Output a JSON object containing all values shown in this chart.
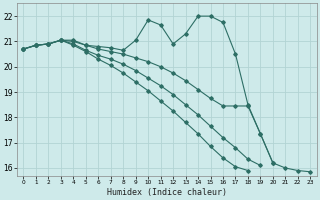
{
  "xlabel": "Humidex (Indice chaleur)",
  "bg_color": "#ceeaea",
  "grid_color": "#b2d4d4",
  "line_color": "#2d6e65",
  "xlim": [
    -0.5,
    23.5
  ],
  "ylim": [
    15.7,
    22.5
  ],
  "yticks": [
    16,
    17,
    18,
    19,
    20,
    21,
    22
  ],
  "xticks": [
    0,
    1,
    2,
    3,
    4,
    5,
    6,
    7,
    8,
    9,
    10,
    11,
    12,
    13,
    14,
    15,
    16,
    17,
    18,
    19,
    20,
    21,
    22,
    23
  ],
  "line1_x": [
    0,
    1,
    2,
    3,
    4,
    5,
    6,
    7,
    8,
    9,
    10,
    11,
    12,
    13,
    14,
    15,
    16,
    17,
    18,
    19,
    20,
    21,
    22,
    23
  ],
  "line1_y": [
    20.7,
    20.85,
    20.9,
    21.05,
    21.05,
    20.85,
    20.8,
    20.75,
    20.65,
    21.05,
    21.85,
    21.65,
    20.9,
    21.3,
    22.0,
    22.0,
    21.75,
    20.5,
    18.5,
    17.35,
    16.2,
    16.0,
    15.9,
    15.85
  ],
  "line2_x": [
    0,
    1,
    2,
    3,
    4,
    5,
    6,
    7,
    8,
    9,
    10,
    11,
    12,
    13,
    14,
    15,
    16,
    17,
    18,
    19,
    20
  ],
  "line2_y": [
    20.7,
    20.85,
    20.9,
    21.05,
    21.0,
    20.85,
    20.7,
    20.6,
    20.5,
    20.35,
    20.2,
    20.0,
    19.75,
    19.45,
    19.1,
    18.75,
    18.45,
    18.45,
    18.45,
    17.35,
    16.2
  ],
  "line3_x": [
    0,
    1,
    2,
    3,
    4,
    5,
    6,
    7,
    8,
    9,
    10,
    11,
    12,
    13,
    14,
    15,
    16,
    17,
    18,
    19
  ],
  "line3_y": [
    20.7,
    20.85,
    20.9,
    21.05,
    20.9,
    20.65,
    20.45,
    20.3,
    20.1,
    19.85,
    19.55,
    19.25,
    18.9,
    18.5,
    18.1,
    17.65,
    17.2,
    16.8,
    16.35,
    16.1
  ],
  "line4_x": [
    0,
    1,
    2,
    3,
    4,
    5,
    6,
    7,
    8,
    9,
    10,
    11,
    12,
    13,
    14,
    15,
    16,
    17,
    18
  ],
  "line4_y": [
    20.7,
    20.85,
    20.9,
    21.05,
    20.85,
    20.6,
    20.3,
    20.05,
    19.75,
    19.4,
    19.05,
    18.65,
    18.25,
    17.8,
    17.35,
    16.85,
    16.4,
    16.05,
    15.9
  ]
}
